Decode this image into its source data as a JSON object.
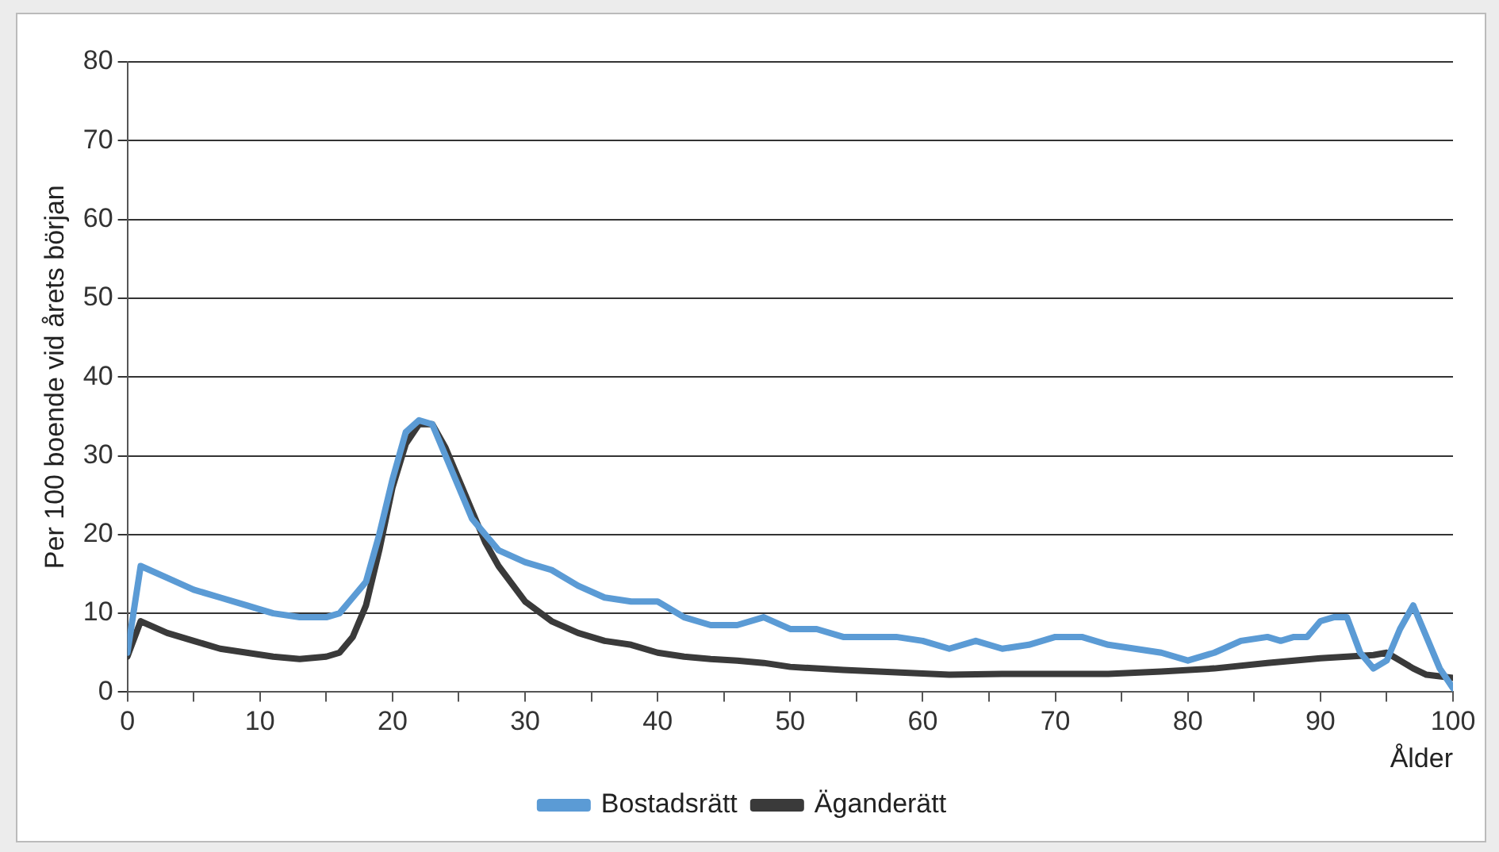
{
  "chart_data": {
    "type": "line",
    "xlabel": "Ålder",
    "ylabel": "Per 100 boende vid årets början",
    "xlim": [
      0,
      100
    ],
    "xticks": [
      0,
      {
        "value": 5,
        "label": null
      },
      10,
      {
        "value": 15,
        "label": null
      },
      20,
      {
        "value": 25,
        "label": null
      },
      30,
      {
        "value": 35,
        "label": null
      },
      40,
      {
        "value": 45,
        "label": null
      },
      50,
      {
        "value": 55,
        "label": null
      },
      60,
      {
        "value": 65,
        "label": null
      },
      70,
      {
        "value": 75,
        "label": null
      },
      80,
      {
        "value": 85,
        "label": null
      },
      90,
      {
        "value": 95,
        "label": null
      },
      100
    ],
    "ylim": [
      0,
      80
    ],
    "yticks": [
      0,
      10,
      20,
      30,
      40,
      50,
      60,
      70,
      80
    ],
    "grid": "y",
    "legend": "bottom",
    "marker": "none",
    "line_style": "solid",
    "series": [
      {
        "name": "Bostadsrätt",
        "color": "#5b9bd5",
        "x": [
          0,
          1,
          3,
          5,
          7,
          9,
          11,
          13,
          15,
          16,
          17,
          18,
          19,
          20,
          21,
          22,
          23,
          24,
          25,
          26,
          27,
          28,
          30,
          32,
          34,
          36,
          38,
          40,
          42,
          44,
          46,
          48,
          50,
          52,
          54,
          56,
          58,
          60,
          62,
          64,
          66,
          68,
          70,
          72,
          74,
          76,
          78,
          80,
          82,
          84,
          86,
          87,
          88,
          89,
          90,
          91,
          92,
          93,
          94,
          95,
          96,
          97,
          98,
          99,
          100
        ],
        "values": [
          5,
          16,
          14.5,
          13,
          12,
          11,
          10,
          9.5,
          9.5,
          10,
          12,
          14,
          20,
          27,
          33,
          34.5,
          34,
          30,
          26,
          22,
          20,
          18,
          16.5,
          15.5,
          13.5,
          12,
          11.5,
          11.5,
          9.5,
          8.5,
          8.5,
          9.5,
          8,
          8,
          7,
          7,
          7,
          6.5,
          5.5,
          6.5,
          5.5,
          6,
          7,
          7,
          6,
          5.5,
          5,
          4,
          5,
          6.5,
          7,
          6.5,
          7,
          7,
          9,
          9.5,
          9.5,
          5,
          3,
          4,
          8,
          11,
          7,
          3,
          0.5
        ]
      },
      {
        "name": "Äganderätt",
        "color": "#3a3a3a",
        "x": [
          0,
          1,
          3,
          5,
          7,
          9,
          11,
          13,
          15,
          16,
          17,
          18,
          19,
          20,
          21,
          22,
          23,
          24,
          25,
          26,
          27,
          28,
          30,
          32,
          34,
          36,
          38,
          40,
          42,
          44,
          46,
          48,
          50,
          54,
          58,
          62,
          66,
          70,
          74,
          78,
          82,
          86,
          90,
          94,
          95,
          96,
          97,
          98,
          100
        ],
        "values": [
          4.5,
          9,
          7.5,
          6.5,
          5.5,
          5,
          4.5,
          4.2,
          4.5,
          5,
          7,
          11,
          18,
          26,
          31.5,
          34,
          34,
          31,
          27,
          23,
          19,
          16,
          11.5,
          9,
          7.5,
          6.5,
          6,
          5,
          4.5,
          4.2,
          4,
          3.7,
          3.2,
          2.8,
          2.5,
          2.2,
          2.3,
          2.3,
          2.3,
          2.6,
          3,
          3.7,
          4.3,
          4.7,
          5,
          4,
          3,
          2.2,
          1.8
        ]
      }
    ]
  }
}
